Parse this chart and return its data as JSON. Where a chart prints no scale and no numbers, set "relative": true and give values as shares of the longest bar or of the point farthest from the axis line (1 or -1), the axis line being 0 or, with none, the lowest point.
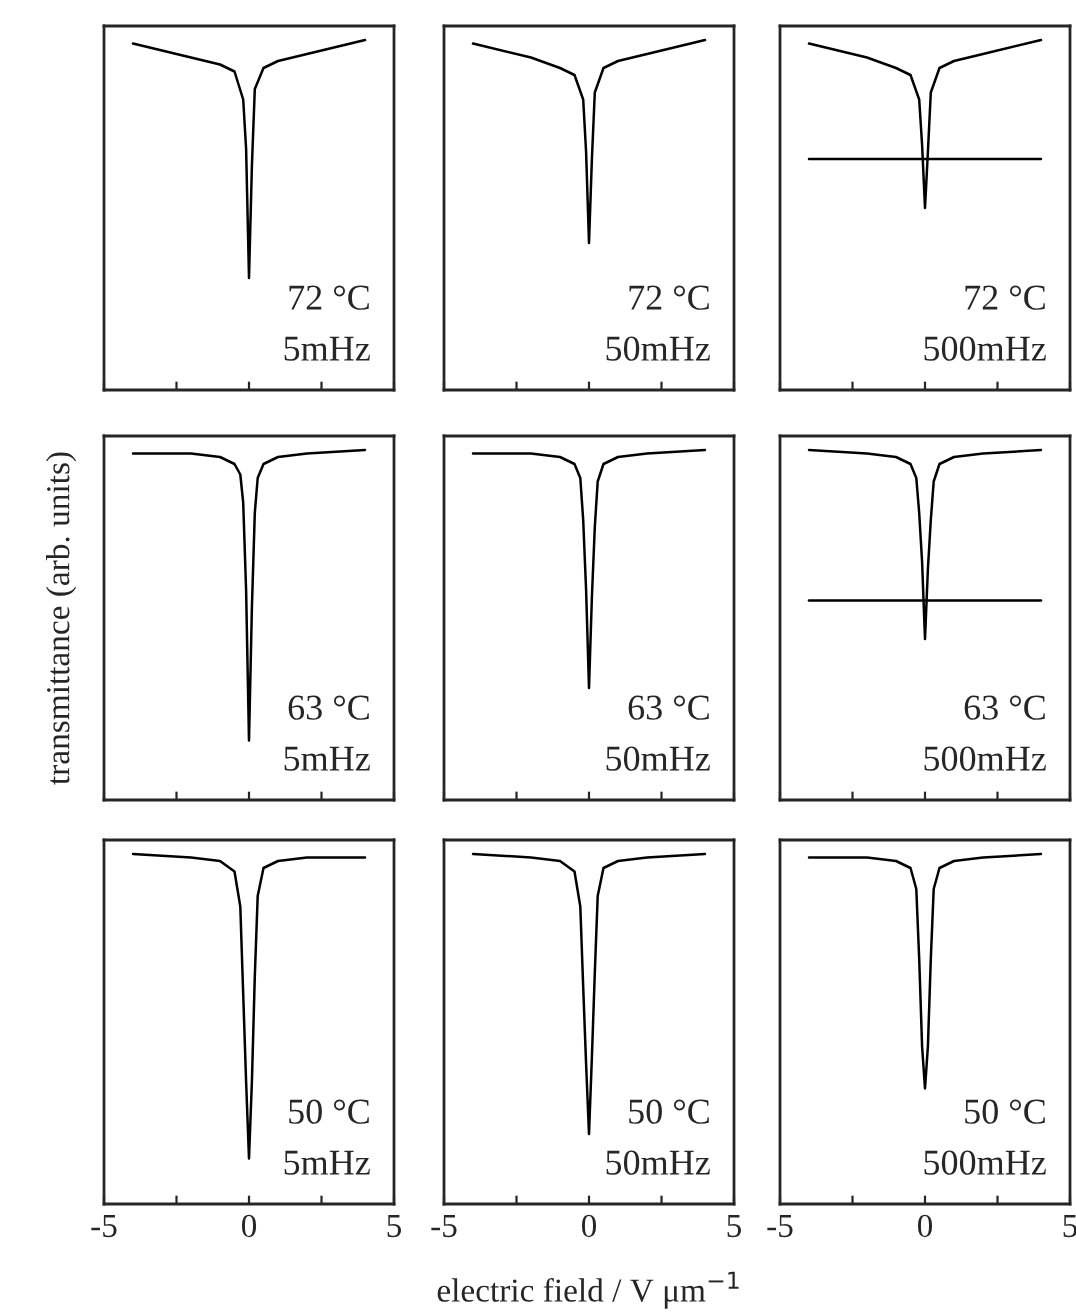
{
  "chart_data": [
    {
      "type": "line",
      "relative": true,
      "xlim": [
        -5,
        5
      ],
      "xticks": [
        {
          "value": -5,
          "label": null
        },
        {
          "value": -2.5,
          "label": null
        },
        {
          "value": 0,
          "label": null
        },
        {
          "value": 2.5,
          "label": null
        },
        {
          "value": 5,
          "label": null
        }
      ],
      "tick_labels": false,
      "annotations": [
        "72 °C",
        "5mHz"
      ],
      "x": [
        -4,
        -2,
        -1,
        -0.5,
        -0.2,
        -0.1,
        0,
        0.1,
        0.2,
        0.5,
        1,
        2,
        4
      ],
      "series": [
        {
          "color": "#000000",
          "values": [
            0.99,
            0.95,
            0.93,
            0.91,
            0.83,
            0.69,
            0.32,
            0.64,
            0.86,
            0.92,
            0.94,
            0.96,
            1
          ]
        }
      ]
    },
    {
      "type": "line",
      "relative": true,
      "xlim": [
        -5,
        5
      ],
      "xticks": [
        {
          "value": -5,
          "label": null
        },
        {
          "value": -2.5,
          "label": null
        },
        {
          "value": 0,
          "label": null
        },
        {
          "value": 2.5,
          "label": null
        },
        {
          "value": 5,
          "label": null
        }
      ],
      "tick_labels": false,
      "annotations": [
        "72 °C",
        "50mHz"
      ],
      "x": [
        -4,
        -2,
        -1,
        -0.5,
        -0.2,
        -0.1,
        0,
        0.1,
        0.2,
        0.5,
        1,
        2,
        4
      ],
      "series": [
        {
          "color": "#000000",
          "values": [
            0.99,
            0.95,
            0.92,
            0.9,
            0.83,
            0.68,
            0.42,
            0.66,
            0.85,
            0.92,
            0.94,
            0.96,
            1
          ]
        }
      ]
    },
    {
      "type": "line",
      "relative": true,
      "xlim": [
        -5,
        5
      ],
      "xticks": [
        {
          "value": -5,
          "label": null
        },
        {
          "value": -2.5,
          "label": null
        },
        {
          "value": 0,
          "label": null
        },
        {
          "value": 2.5,
          "label": null
        },
        {
          "value": 5,
          "label": null
        }
      ],
      "tick_labels": false,
      "annotations": [
        "72 °C",
        "500mHz"
      ],
      "x": [
        -4,
        -2,
        -1,
        -0.5,
        -0.2,
        -0.1,
        0,
        0.1,
        0.2,
        0.5,
        1,
        2,
        4
      ],
      "series": [
        {
          "color": "#000000",
          "values": [
            0.99,
            0.95,
            0.92,
            0.9,
            0.83,
            0.7,
            0.52,
            0.68,
            0.85,
            0.92,
            0.94,
            0.96,
            1
          ]
        },
        {
          "color": "#000000",
          "values": [
            0.66,
            0.66,
            0.66,
            0.66,
            0.66,
            0.66,
            0.66,
            0.66,
            0.66,
            0.66,
            0.66,
            0.66,
            0.66
          ]
        }
      ]
    },
    {
      "type": "line",
      "relative": true,
      "xlim": [
        -5,
        5
      ],
      "xticks": [
        {
          "value": -5,
          "label": null
        },
        {
          "value": -2.5,
          "label": null
        },
        {
          "value": 0,
          "label": null
        },
        {
          "value": 2.5,
          "label": null
        },
        {
          "value": 5,
          "label": null
        }
      ],
      "tick_labels": false,
      "ylabel": "transmittance (arb. units)",
      "annotations": [
        "63 °C",
        "5mHz"
      ],
      "x": [
        -4,
        -2,
        -1,
        -0.5,
        -0.3,
        -0.2,
        -0.1,
        0,
        0.1,
        0.2,
        0.3,
        0.5,
        1,
        2,
        4
      ],
      "series": [
        {
          "color": "#000000",
          "values": [
            0.99,
            0.99,
            0.98,
            0.96,
            0.93,
            0.85,
            0.6,
            0.17,
            0.55,
            0.82,
            0.92,
            0.96,
            0.98,
            0.99,
            1
          ]
        }
      ]
    },
    {
      "type": "line",
      "relative": true,
      "xlim": [
        -5,
        5
      ],
      "xticks": [
        {
          "value": -5,
          "label": null
        },
        {
          "value": -2.5,
          "label": null
        },
        {
          "value": 0,
          "label": null
        },
        {
          "value": 2.5,
          "label": null
        },
        {
          "value": 5,
          "label": null
        }
      ],
      "tick_labels": false,
      "annotations": [
        "63 °C",
        "50mHz"
      ],
      "x": [
        -4,
        -2,
        -1,
        -0.5,
        -0.3,
        -0.2,
        -0.1,
        0,
        0.1,
        0.2,
        0.3,
        0.5,
        1,
        2,
        4
      ],
      "series": [
        {
          "color": "#000000",
          "values": [
            0.99,
            0.99,
            0.98,
            0.96,
            0.92,
            0.8,
            0.6,
            0.32,
            0.58,
            0.78,
            0.91,
            0.96,
            0.98,
            0.99,
            1
          ]
        }
      ]
    },
    {
      "type": "line",
      "relative": true,
      "xlim": [
        -5,
        5
      ],
      "xticks": [
        {
          "value": -5,
          "label": null
        },
        {
          "value": -2.5,
          "label": null
        },
        {
          "value": 0,
          "label": null
        },
        {
          "value": 2.5,
          "label": null
        },
        {
          "value": 5,
          "label": null
        }
      ],
      "tick_labels": false,
      "annotations": [
        "63 °C",
        "500mHz"
      ],
      "x": [
        -4,
        -2,
        -1,
        -0.5,
        -0.3,
        -0.2,
        -0.1,
        0,
        0.1,
        0.2,
        0.3,
        0.5,
        1,
        2,
        4
      ],
      "series": [
        {
          "color": "#000000",
          "values": [
            1,
            0.99,
            0.98,
            0.96,
            0.92,
            0.82,
            0.68,
            0.46,
            0.66,
            0.8,
            0.91,
            0.96,
            0.98,
            0.99,
            1
          ]
        },
        {
          "color": "#000000",
          "values": [
            0.57,
            0.57,
            0.57,
            0.57,
            0.57,
            0.57,
            0.57,
            0.57,
            0.57,
            0.57,
            0.57,
            0.57,
            0.57,
            0.57,
            0.57
          ]
        }
      ]
    },
    {
      "type": "line",
      "relative": true,
      "xlim": [
        -5,
        5
      ],
      "xticks": [
        -5,
        {
          "value": -2.5,
          "label": null
        },
        0,
        {
          "value": 2.5,
          "label": null
        },
        5
      ],
      "tick_labels": "x",
      "annotations": [
        "50 °C",
        "5mHz"
      ],
      "x": [
        -4,
        -2,
        -1,
        -0.5,
        -0.3,
        -0.2,
        -0.1,
        0,
        0.1,
        0.2,
        0.3,
        0.5,
        1,
        2,
        4
      ],
      "series": [
        {
          "color": "#000000",
          "values": [
            1,
            0.99,
            0.98,
            0.95,
            0.85,
            0.6,
            0.35,
            0.13,
            0.35,
            0.65,
            0.88,
            0.96,
            0.98,
            0.99,
            0.99
          ]
        }
      ]
    },
    {
      "type": "line",
      "relative": true,
      "xlim": [
        -5,
        5
      ],
      "xticks": [
        -5,
        {
          "value": -2.5,
          "label": null
        },
        0,
        {
          "value": 2.5,
          "label": null
        },
        5
      ],
      "tick_labels": "x",
      "xlabel": "electric field / V μm$^{−1}$",
      "annotations": [
        "50 °C",
        "50mHz"
      ],
      "x": [
        -4,
        -2,
        -1,
        -0.5,
        -0.3,
        -0.2,
        -0.1,
        0,
        0.1,
        0.2,
        0.3,
        0.5,
        1,
        2,
        4
      ],
      "series": [
        {
          "color": "#000000",
          "values": [
            1,
            0.99,
            0.98,
            0.95,
            0.85,
            0.62,
            0.4,
            0.2,
            0.42,
            0.66,
            0.88,
            0.96,
            0.98,
            0.99,
            1
          ]
        }
      ]
    },
    {
      "type": "line",
      "relative": true,
      "xlim": [
        -5,
        5
      ],
      "xticks": [
        -5,
        {
          "value": -2.5,
          "label": null
        },
        0,
        {
          "value": 2.5,
          "label": null
        },
        5
      ],
      "tick_labels": "x",
      "annotations": [
        "50 °C",
        "500mHz"
      ],
      "x": [
        -4,
        -2,
        -1,
        -0.5,
        -0.3,
        -0.2,
        -0.1,
        0,
        0.1,
        0.2,
        0.3,
        0.5,
        1,
        2,
        4
      ],
      "series": [
        {
          "color": "#000000",
          "values": [
            0.99,
            0.99,
            0.98,
            0.96,
            0.9,
            0.7,
            0.45,
            0.33,
            0.45,
            0.7,
            0.9,
            0.96,
            0.98,
            0.99,
            1
          ]
        }
      ]
    }
  ]
}
